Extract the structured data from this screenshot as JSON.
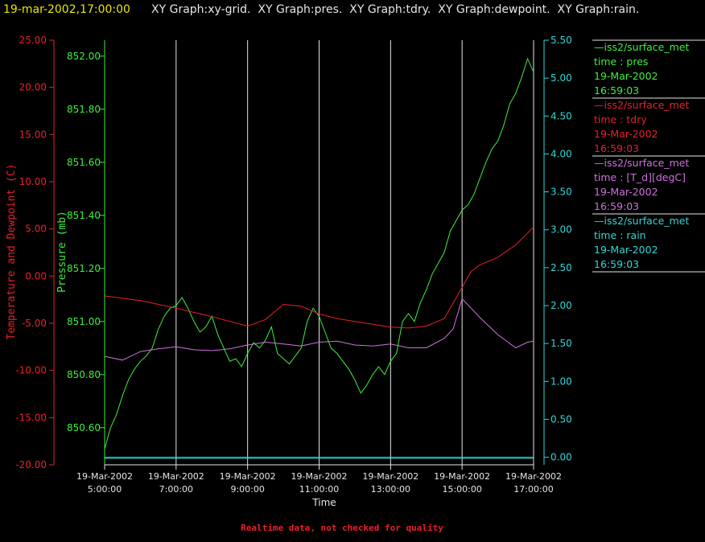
{
  "header": {
    "timestamp": "19-mar-2002,17:00:00",
    "titles": "XY Graph:xy-grid.  XY Graph:pres.  XY Graph:tdry.  XY Graph:dewpoint.  XY Graph:rain."
  },
  "footer": {
    "note": "Realtime data, not checked for quality"
  },
  "colors": {
    "pres": "#3cf03c",
    "tdry": "#e8202a",
    "dewpoint": "#d070e0",
    "rain": "#30d8d8",
    "title": "#e8e800",
    "grid": "#e6e6e6"
  },
  "chart_data": {
    "type": "line",
    "xlabel": "Time",
    "x_ticks": [
      {
        "date": "19-Mar-2002",
        "time": "5:00:00"
      },
      {
        "date": "19-Mar-2002",
        "time": "7:00:00"
      },
      {
        "date": "19-Mar-2002",
        "time": "9:00:00"
      },
      {
        "date": "19-Mar-2002",
        "time": "11:00:00"
      },
      {
        "date": "19-Mar-2002",
        "time": "13:00:00"
      },
      {
        "date": "19-Mar-2002",
        "time": "15:00:00"
      },
      {
        "date": "19-Mar-2002",
        "time": "17:00:00"
      }
    ],
    "xlim": [
      "05:00",
      "17:00"
    ],
    "axes": {
      "temp": {
        "label": "Temperature and Dewpoint (C)",
        "ylim": [
          -20,
          25
        ],
        "ticks": [
          "25.00",
          "20.00",
          "15.00",
          "10.00",
          "5.00",
          "0.00",
          "-5.00",
          "-10.00",
          "-15.00",
          "-20.00"
        ]
      },
      "pres": {
        "label": "Pressure (mb)",
        "ylim": [
          850.46,
          852.06
        ],
        "ticks": [
          "852.00",
          "851.80",
          "851.60",
          "851.40",
          "851.20",
          "851.00",
          "850.80",
          "850.60"
        ]
      },
      "rain": {
        "label": "",
        "ylim": [
          -0.1,
          5.5
        ],
        "ticks": [
          "5.50",
          "5.00",
          "4.50",
          "4.00",
          "3.50",
          "3.00",
          "2.50",
          "2.00",
          "1.50",
          "1.00",
          "0.50",
          "0.00"
        ]
      }
    },
    "series": [
      {
        "name": "pres",
        "axis": "pres",
        "points": [
          [
            "05:00",
            850.52
          ],
          [
            "05:10",
            850.6
          ],
          [
            "05:20",
            850.65
          ],
          [
            "05:30",
            850.72
          ],
          [
            "05:40",
            850.78
          ],
          [
            "05:50",
            850.82
          ],
          [
            "06:00",
            850.85
          ],
          [
            "06:10",
            850.87
          ],
          [
            "06:20",
            850.9
          ],
          [
            "06:30",
            850.97
          ],
          [
            "06:40",
            851.02
          ],
          [
            "06:50",
            851.05
          ],
          [
            "07:00",
            851.06
          ],
          [
            "07:10",
            851.09
          ],
          [
            "07:20",
            851.05
          ],
          [
            "07:30",
            851.0
          ],
          [
            "07:40",
            850.96
          ],
          [
            "07:50",
            850.98
          ],
          [
            "08:00",
            851.02
          ],
          [
            "08:10",
            850.95
          ],
          [
            "08:20",
            850.9
          ],
          [
            "08:30",
            850.85
          ],
          [
            "08:40",
            850.86
          ],
          [
            "08:50",
            850.83
          ],
          [
            "09:00",
            850.88
          ],
          [
            "09:10",
            850.92
          ],
          [
            "09:20",
            850.9
          ],
          [
            "09:30",
            850.93
          ],
          [
            "09:40",
            850.98
          ],
          [
            "09:50",
            850.88
          ],
          [
            "10:00",
            850.86
          ],
          [
            "10:10",
            850.84
          ],
          [
            "10:20",
            850.87
          ],
          [
            "10:30",
            850.9
          ],
          [
            "10:40",
            851.0
          ],
          [
            "10:50",
            851.05
          ],
          [
            "11:00",
            851.02
          ],
          [
            "11:10",
            850.96
          ],
          [
            "11:20",
            850.9
          ],
          [
            "11:30",
            850.88
          ],
          [
            "11:40",
            850.85
          ],
          [
            "11:50",
            850.82
          ],
          [
            "12:00",
            850.78
          ],
          [
            "12:10",
            850.73
          ],
          [
            "12:20",
            850.76
          ],
          [
            "12:30",
            850.8
          ],
          [
            "12:40",
            850.83
          ],
          [
            "12:50",
            850.8
          ],
          [
            "13:00",
            850.85
          ],
          [
            "13:10",
            850.88
          ],
          [
            "13:20",
            851.0
          ],
          [
            "13:30",
            851.03
          ],
          [
            "13:40",
            851.0
          ],
          [
            "13:50",
            851.07
          ],
          [
            "14:00",
            851.12
          ],
          [
            "14:10",
            851.18
          ],
          [
            "14:20",
            851.22
          ],
          [
            "14:30",
            851.26
          ],
          [
            "14:40",
            851.34
          ],
          [
            "14:50",
            851.38
          ],
          [
            "15:00",
            851.42
          ],
          [
            "15:10",
            851.44
          ],
          [
            "15:20",
            851.48
          ],
          [
            "15:30",
            851.54
          ],
          [
            "15:40",
            851.6
          ],
          [
            "15:50",
            851.65
          ],
          [
            "16:00",
            851.68
          ],
          [
            "16:10",
            851.74
          ],
          [
            "16:20",
            851.82
          ],
          [
            "16:30",
            851.86
          ],
          [
            "16:40",
            851.92
          ],
          [
            "16:50",
            851.99
          ],
          [
            "17:00",
            851.94
          ]
        ]
      },
      {
        "name": "tdry",
        "axis": "temp",
        "points": [
          [
            "05:00",
            -2.1
          ],
          [
            "06:00",
            -2.6
          ],
          [
            "07:00",
            -3.4
          ],
          [
            "08:00",
            -4.3
          ],
          [
            "09:00",
            -5.3
          ],
          [
            "09:30",
            -4.6
          ],
          [
            "10:00",
            -3.0
          ],
          [
            "10:30",
            -3.2
          ],
          [
            "11:00",
            -4.0
          ],
          [
            "11:30",
            -4.5
          ],
          [
            "12:00",
            -4.8
          ],
          [
            "12:30",
            -5.1
          ],
          [
            "13:00",
            -5.4
          ],
          [
            "13:30",
            -5.5
          ],
          [
            "14:00",
            -5.3
          ],
          [
            "14:30",
            -4.5
          ],
          [
            "15:00",
            -1.2
          ],
          [
            "15:15",
            0.5
          ],
          [
            "15:30",
            1.2
          ],
          [
            "16:00",
            2.0
          ],
          [
            "16:30",
            3.3
          ],
          [
            "17:00",
            5.2
          ]
        ]
      },
      {
        "name": "[T_d][degC]",
        "axis": "temp",
        "points": [
          [
            "05:00",
            -8.5
          ],
          [
            "05:30",
            -8.9
          ],
          [
            "06:00",
            -8.0
          ],
          [
            "06:30",
            -7.7
          ],
          [
            "07:00",
            -7.5
          ],
          [
            "07:30",
            -7.8
          ],
          [
            "08:00",
            -7.9
          ],
          [
            "08:30",
            -7.7
          ],
          [
            "09:00",
            -7.3
          ],
          [
            "09:30",
            -7.0
          ],
          [
            "10:00",
            -7.2
          ],
          [
            "10:30",
            -7.4
          ],
          [
            "11:00",
            -7.0
          ],
          [
            "11:30",
            -6.9
          ],
          [
            "12:00",
            -7.3
          ],
          [
            "12:30",
            -7.4
          ],
          [
            "13:00",
            -7.2
          ],
          [
            "13:30",
            -7.6
          ],
          [
            "14:00",
            -7.6
          ],
          [
            "14:30",
            -6.6
          ],
          [
            "14:45",
            -5.6
          ],
          [
            "15:00",
            -2.4
          ],
          [
            "15:15",
            -3.4
          ],
          [
            "15:30",
            -4.4
          ],
          [
            "16:00",
            -6.2
          ],
          [
            "16:30",
            -7.6
          ],
          [
            "16:50",
            -7.0
          ],
          [
            "17:00",
            -6.9
          ]
        ]
      },
      {
        "name": "rain",
        "axis": "rain",
        "points": [
          [
            "05:00",
            0
          ],
          [
            "17:00",
            0
          ]
        ]
      }
    ]
  },
  "legend": [
    {
      "source": "—iss2/surface_met",
      "label": "time : pres",
      "date": "19-Mar-2002",
      "time": "16:59:03"
    },
    {
      "source": "—iss2/surface_met",
      "label": "time : tdry",
      "date": "19-Mar-2002",
      "time": "16:59:03"
    },
    {
      "source": "—iss2/surface_met",
      "label": "time : [T_d][degC]",
      "date": "19-Mar-2002",
      "time": "16:59:03"
    },
    {
      "source": "—iss2/surface_met",
      "label": "time : rain",
      "date": "19-Mar-2002",
      "time": "16:59:03"
    }
  ]
}
